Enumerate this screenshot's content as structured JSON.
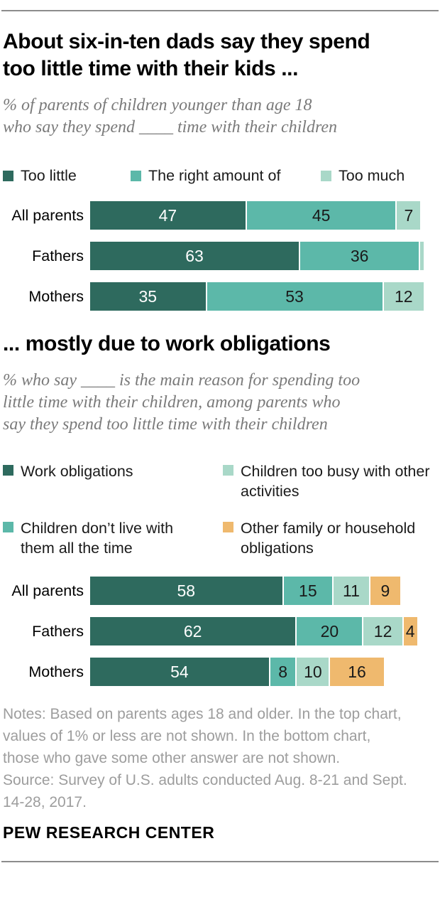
{
  "page": {
    "section1": {
      "title_lines": [
        "About six-in-ten dads say they spend",
        "too little time with their kids ..."
      ],
      "subtitle_lines": [
        "% of parents of children younger than age 18",
        "who say they spend ____ time with their children"
      ]
    },
    "section2": {
      "title_lines": [
        "... mostly due to work obligations"
      ],
      "subtitle_lines": [
        "% who say ____ is the main reason for spending too",
        "little time with their children, among parents who",
        "say they spend too little time with their children"
      ]
    },
    "notes_lines": [
      "Notes: Based on parents ages 18 and older. In the top chart,",
      "values of 1% or less are not shown. In the bottom chart,",
      "those who gave some other answer are not shown.",
      "Source: Survey of U.S. adults conducted Aug. 8-21 and Sept.",
      "14-28, 2017."
    ],
    "footer": "PEW RESEARCH CENTER",
    "colors": {
      "dark_teal": "#2E6A5E",
      "teal": "#5CB8A9",
      "light_teal": "#A9D8C8",
      "orange": "#EFB96E",
      "rule_gray": "#8C8C8C",
      "subtitle_gray": "#7A7A7A",
      "notes_gray": "#9D9D9D"
    }
  },
  "chart_data": [
    {
      "type": "bar",
      "stacked": true,
      "orientation": "horizontal",
      "title": "About six-in-ten dads say they spend too little time with their kids ...",
      "subtitle": "% of parents of children younger than age 18 who say they spend ____ time with their children",
      "categories": [
        "All parents",
        "Fathers",
        "Mothers"
      ],
      "series": [
        {
          "name": "Too little",
          "color": "#2E6A5E",
          "label_color": "#FFFFFF",
          "values": [
            47,
            63,
            35
          ]
        },
        {
          "name": "The right amount of",
          "color": "#5CB8A9",
          "label_color": "#1A1A1A",
          "values": [
            45,
            36,
            53
          ]
        },
        {
          "name": "Too much",
          "color": "#A9D8C8",
          "label_color": "#1A1A1A",
          "values": [
            7,
            1,
            12
          ]
        }
      ],
      "xlim": [
        0,
        100
      ],
      "value_label_min": 2,
      "legend_position": "top",
      "grid": false
    },
    {
      "type": "bar",
      "stacked": true,
      "orientation": "horizontal",
      "title": "... mostly due to work obligations",
      "subtitle": "% who say ____ is the main reason for spending too little time with their children, among parents who say they spend too little time with their children",
      "categories": [
        "All parents",
        "Fathers",
        "Mothers"
      ],
      "series": [
        {
          "name": "Work obligations",
          "color": "#2E6A5E",
          "label_color": "#FFFFFF",
          "values": [
            58,
            62,
            54
          ]
        },
        {
          "name": "Children don’t live with them all the time",
          "color": "#5CB8A9",
          "label_color": "#1A1A1A",
          "values": [
            15,
            20,
            8
          ]
        },
        {
          "name": "Children too busy with other activities",
          "color": "#A9D8C8",
          "label_color": "#1A1A1A",
          "values": [
            11,
            12,
            10
          ]
        },
        {
          "name": "Other family or household obligations",
          "color": "#EFB96E",
          "label_color": "#1A1A1A",
          "values": [
            9,
            4,
            16
          ]
        }
      ],
      "xlim": [
        0,
        100
      ],
      "value_label_min": 0,
      "legend_position": "top",
      "grid": false
    }
  ]
}
